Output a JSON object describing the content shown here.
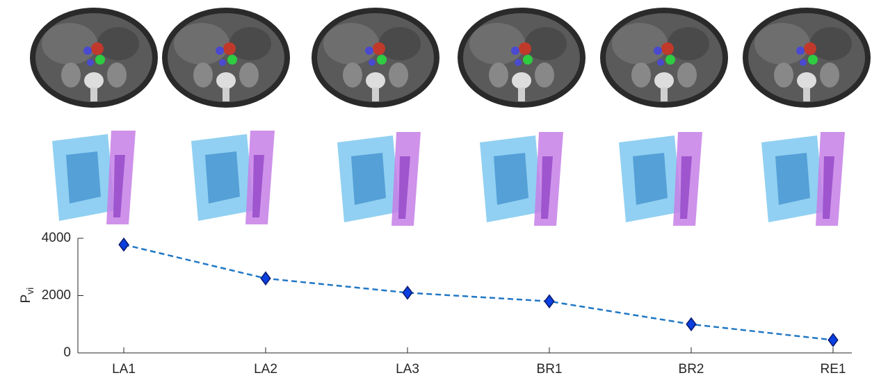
{
  "chart_data": {
    "type": "line",
    "ylabel": "P",
    "ylabel_subscript": "vi",
    "categories": [
      "LA1",
      "LA2",
      "LA3",
      "BR1",
      "BR2",
      "RE1"
    ],
    "series": [
      {
        "color": "#1f77c4",
        "marker_color": "#0a3fe0",
        "values": [
          3780,
          2600,
          2100,
          1800,
          1000,
          450
        ]
      }
    ],
    "ylim": [
      0,
      4000
    ],
    "yticks": [
      0,
      2000,
      4000
    ],
    "line_style": "dashed",
    "marker": "diamond"
  }
}
